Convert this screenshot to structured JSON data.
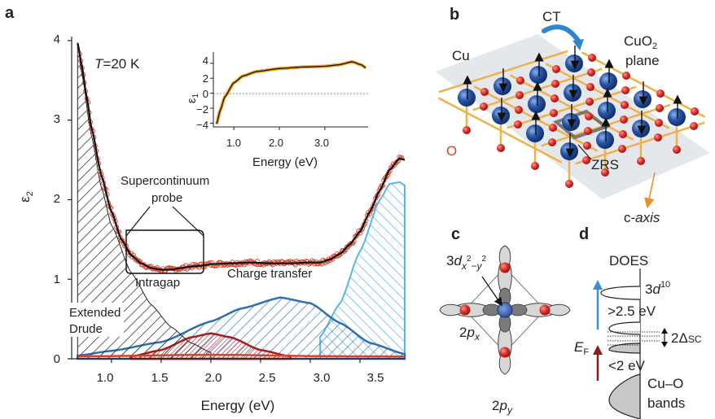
{
  "panels": {
    "a": "a",
    "b": "b",
    "c": "c",
    "d": "d"
  },
  "colors": {
    "fit": "#111111",
    "data_points": "#d8432b",
    "drude": "#222222",
    "intragap": "#a61e1e",
    "charge_transfer": "#2e6fb0",
    "high_energy": "#5bb4e4",
    "inset_data": "#f2a21a",
    "cu_atom": "#2a56a8",
    "o_atom": "#e0302a",
    "bond": "#f0b04a",
    "arrow_up_blue": "#3a8fd4",
    "arrow_up_red": "#8b1c1c",
    "axis_orange": "#e8902a"
  },
  "panel_a": {
    "temperature_label": "=20 K",
    "temperature_symbol": "T",
    "ylabel": "ε",
    "ylabel_sub": "2",
    "xlabel": "Energy (eV)",
    "yticks": [
      "0",
      "1",
      "2",
      "3",
      "4"
    ],
    "xticks": [
      "1.0",
      "1.5",
      "2.0",
      "2.5",
      "3.0",
      "3.5"
    ],
    "annotations": {
      "probe_line1": "Supercontinuum",
      "probe_line2": "probe",
      "intragap": "Intragap",
      "charge_transfer": "Charge transfer",
      "drude_line1": "Extended",
      "drude_line2": "Drude"
    },
    "inset": {
      "ylabel": "ε",
      "ylabel_sub": "1",
      "xlabel": "Energy (eV)",
      "yticks": [
        "4",
        "2",
        "0",
        "−2",
        "−4"
      ],
      "xticks": [
        "1.0",
        "2.0",
        "3.0"
      ]
    }
  },
  "panel_b": {
    "cu_label": "Cu",
    "o_label": "O",
    "ct_label": "CT",
    "plane_line1": "CuO",
    "plane_sub": "2",
    "plane_line2": "plane",
    "zrs_label": "ZRS",
    "axis_prefix": "c-",
    "axis_word": "axis"
  },
  "panel_c": {
    "orbital_prefix": "3",
    "orbital_d": "d",
    "orbital_x": "x",
    "orbital_minus_y": "−y",
    "sup_2": "2",
    "px_label_2": "2",
    "px_label_p": "p",
    "px_label_x": "x",
    "py_label_2": "2",
    "py_label_p": "p",
    "py_label_y": "y"
  },
  "panel_d": {
    "title": "DOES",
    "d10_prefix": "3",
    "d10_d": "d",
    "d10_sup": "10",
    "gt_label": ">2.5 eV",
    "lt_label": "<2 eV",
    "gap_prefix": "2Δ",
    "gap_sub": "SC",
    "ef_label": "E",
    "ef_sub": "F",
    "bands_line1": "Cu–O",
    "bands_line2": "bands"
  },
  "chart_data": [
    {
      "type": "line",
      "title": "",
      "xlabel": "Energy (eV)",
      "ylabel": "ε2",
      "xlim": [
        0.6,
        3.95
      ],
      "ylim": [
        0,
        4.05
      ],
      "series": [
        {
          "name": "",
          "kind": "data + fit",
          "x": [
            0.66,
            0.7,
            0.75,
            0.8,
            0.9,
            1.0,
            1.1,
            1.2,
            1.3,
            1.4,
            1.5,
            1.6,
            1.7,
            1.8,
            1.9,
            2.0,
            2.2,
            2.4,
            2.6,
            2.8,
            3.0,
            3.1,
            3.2,
            3.3,
            3.4,
            3.5,
            3.6,
            3.7,
            3.8,
            3.9,
            3.95
          ],
          "y": [
            3.97,
            3.7,
            3.3,
            2.9,
            2.3,
            1.85,
            1.5,
            1.3,
            1.2,
            1.14,
            1.12,
            1.12,
            1.14,
            1.16,
            1.17,
            1.19,
            1.2,
            1.21,
            1.2,
            1.2,
            1.21,
            1.21,
            1.25,
            1.32,
            1.44,
            1.6,
            1.85,
            2.12,
            2.38,
            2.52,
            2.5
          ]
        },
        {
          "name": "Extended Drude",
          "x": [
            0.66,
            0.7,
            0.8,
            0.9,
            1.0,
            1.2,
            1.4,
            1.6,
            1.8,
            2.0
          ],
          "y": [
            3.97,
            3.6,
            2.8,
            2.15,
            1.68,
            1.08,
            0.68,
            0.4,
            0.2,
            0.08
          ]
        },
        {
          "name": "Intragap",
          "x": [
            1.2,
            1.5,
            1.8,
            2.0,
            2.2,
            2.5,
            2.8
          ],
          "y": [
            0.03,
            0.11,
            0.27,
            0.32,
            0.27,
            0.11,
            0.03
          ]
        },
        {
          "name": "Charge transfer",
          "x": [
            0.66,
            1.0,
            1.5,
            2.0,
            2.3,
            2.7,
            3.0,
            3.3,
            3.6,
            3.95
          ],
          "y": [
            0.04,
            0.1,
            0.21,
            0.47,
            0.63,
            0.77,
            0.7,
            0.45,
            0.2,
            0.06
          ]
        },
        {
          "name": "",
          "x": [
            3.1,
            3.3,
            3.5,
            3.7,
            3.8,
            3.9,
            3.95
          ],
          "y": [
            0.28,
            0.7,
            1.35,
            2.0,
            2.2,
            2.22,
            2.18
          ]
        }
      ]
    },
    {
      "type": "line",
      "title": "",
      "xlabel": "Energy (eV)",
      "ylabel": "ε1",
      "xlim": [
        0.55,
        3.95
      ],
      "ylim": [
        -4.5,
        5.5
      ],
      "series": [
        {
          "name": "",
          "x": [
            0.62,
            0.7,
            0.8,
            1.0,
            1.2,
            1.5,
            2.0,
            2.5,
            3.0,
            3.3,
            3.6,
            3.8,
            3.9
          ],
          "y": [
            -4.1,
            -2.3,
            -0.5,
            1.4,
            2.3,
            2.9,
            3.3,
            3.5,
            3.6,
            3.8,
            4.2,
            3.8,
            3.4
          ]
        }
      ]
    }
  ]
}
